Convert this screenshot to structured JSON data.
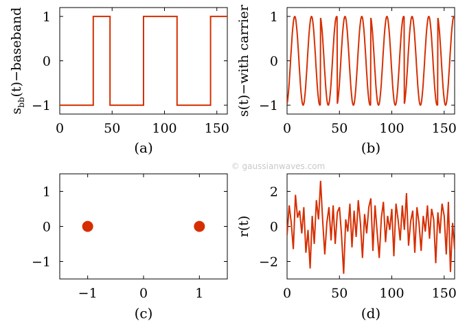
{
  "watermark": "© gaussianwaves.com",
  "chart_data": [
    {
      "id": "a",
      "type": "line",
      "caption": "(a)",
      "ylabel": "s",
      "ylabel_sub": "bb",
      "ylabel_rest": "(t)−baseband",
      "xlim": [
        0,
        160
      ],
      "ylim": [
        -1.2,
        1.2
      ],
      "xticks": [
        0,
        50,
        100,
        150
      ],
      "yticks": [
        -1,
        0,
        1
      ],
      "color": "#d62e00",
      "series": [
        {
          "x": [
            0,
            32,
            32,
            48,
            48,
            80,
            80,
            112,
            112,
            144,
            144,
            160
          ],
          "y": [
            -1,
            -1,
            1,
            1,
            -1,
            -1,
            1,
            1,
            -1,
            -1,
            1,
            1
          ]
        }
      ]
    },
    {
      "id": "b",
      "type": "line",
      "caption": "(b)",
      "ylabel": "s(t)−with carrier",
      "xlim": [
        0,
        160
      ],
      "ylim": [
        -1.2,
        1.2
      ],
      "xticks": [
        0,
        50,
        100,
        150
      ],
      "yticks": [
        -1,
        0,
        1
      ],
      "color": "#d62e00",
      "function": "sinusoid",
      "period": 16,
      "phase_reversals_at": [
        32,
        48,
        80,
        112,
        144
      ]
    },
    {
      "id": "c",
      "type": "scatter",
      "caption": "(c)",
      "xlim": [
        -1.5,
        1.5
      ],
      "ylim": [
        -1.5,
        1.5
      ],
      "xticks": [
        -1,
        0,
        1
      ],
      "yticks": [
        -1,
        0,
        1
      ],
      "color": "#d62e00",
      "points": [
        {
          "x": -1,
          "y": 0
        },
        {
          "x": 1,
          "y": 0
        }
      ]
    },
    {
      "id": "d",
      "type": "line",
      "caption": "(d)",
      "ylabel": "r(t)",
      "xlim": [
        0,
        160
      ],
      "ylim": [
        -3,
        3
      ],
      "xticks": [
        0,
        50,
        100,
        150
      ],
      "yticks": [
        -2,
        0,
        2
      ],
      "color": "#d62e00",
      "series": [
        {
          "x": [
            0,
            2,
            4,
            6,
            8,
            10,
            12,
            14,
            16,
            18,
            20,
            22,
            24,
            26,
            28,
            30,
            32,
            34,
            36,
            38,
            40,
            42,
            44,
            46,
            48,
            50,
            52,
            54,
            56,
            58,
            60,
            62,
            64,
            66,
            68,
            70,
            72,
            74,
            76,
            78,
            80,
            82,
            84,
            86,
            88,
            90,
            92,
            94,
            96,
            98,
            100,
            102,
            104,
            106,
            108,
            110,
            112,
            114,
            116,
            118,
            120,
            122,
            124,
            126,
            128,
            130,
            132,
            134,
            136,
            138,
            140,
            142,
            144,
            146,
            148,
            150,
            152,
            154,
            156,
            158,
            160
          ],
          "y": [
            -0.5,
            1.2,
            0.2,
            -1.3,
            1.8,
            0.5,
            0.9,
            -0.4,
            1.1,
            -1.5,
            -0.2,
            -2.4,
            0.6,
            -1.0,
            1.5,
            0.4,
            2.6,
            0.3,
            -1.6,
            0.2,
            1.1,
            -0.8,
            1.2,
            -1.0,
            0.8,
            1.1,
            -0.5,
            -2.7,
            0.4,
            -0.3,
            1.3,
            -1.2,
            0.9,
            -0.6,
            1.5,
            0.2,
            -1.8,
            0.7,
            -0.4,
            1.1,
            1.6,
            -1.4,
            1.2,
            -0.3,
            -1.8,
            0.5,
            1.4,
            -0.9,
            0.6,
            -0.2,
            1.0,
            -1.7,
            1.3,
            0.4,
            -0.8,
            1.2,
            -0.2,
            1.9,
            -1.1,
            0.3,
            0.9,
            -1.5,
            1.1,
            0.2,
            -1.4,
            0.6,
            -0.3,
            1.2,
            -0.7,
            1.0,
            0.4,
            -2.1,
            0.8,
            -0.4,
            1.3,
            0.6,
            -1.6,
            1.4,
            -2.6,
            0.2,
            -1.3
          ]
        }
      ]
    }
  ]
}
